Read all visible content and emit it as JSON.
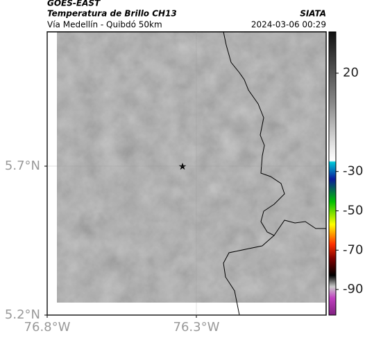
{
  "header": {
    "source": "GOES-EAST",
    "title": "Temperatura de Brillo CH13",
    "subtitle": "Vía Medellín - Quibdó 50km",
    "agency": "SIATA",
    "timestamp": "2024-03-06 00:29"
  },
  "map": {
    "xlim": [
      -76.8,
      -75.865
    ],
    "ylim": [
      5.2,
      6.151
    ],
    "xticks": [
      {
        "value": -76.8,
        "label": "76.8°W"
      },
      {
        "value": -76.3,
        "label": "76.3°W"
      }
    ],
    "yticks": [
      {
        "value": 5.2,
        "label": "5.2°N"
      },
      {
        "value": 5.7,
        "label": "5.7°N"
      }
    ]
  },
  "colorbar": {
    "clim": [
      -103,
      41
    ],
    "ticks": [
      20,
      -30,
      -50,
      -70,
      -90
    ]
  }
}
